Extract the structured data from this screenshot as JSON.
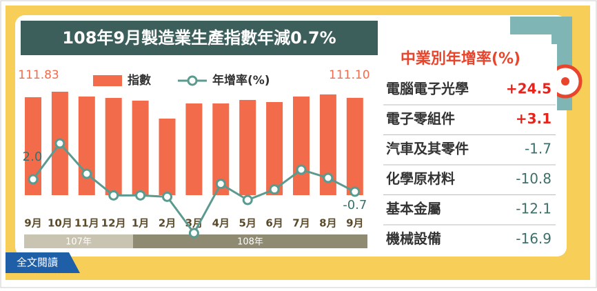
{
  "chart_data": {
    "type": "bar_line",
    "title": "108年9月製造業生產指數年減0.7%",
    "categories": [
      "9月",
      "10月",
      "11月",
      "12月",
      "1月",
      "2月",
      "3月",
      "4月",
      "5月",
      "6月",
      "7月",
      "8月",
      "9月"
    ],
    "year_groups": [
      "107年",
      "108年"
    ],
    "series": [
      {
        "name": "指數",
        "type": "bar",
        "color": "#f26b4b",
        "values": [
          111.83,
          118.1,
          112.6,
          111.0,
          107.9,
          87.4,
          104.7,
          104.7,
          108.7,
          106.3,
          112.6,
          115.0,
          111.1
        ],
        "value_labels": [
          "111.83",
          null,
          null,
          null,
          null,
          null,
          null,
          null,
          null,
          null,
          null,
          null,
          "111.10"
        ]
      },
      {
        "name": "年增率(%)",
        "type": "line",
        "color": "#5a9a8f",
        "values": [
          2.0,
          9.8,
          3.2,
          -1.5,
          -1.5,
          -1.8,
          -9.7,
          1.0,
          -2.5,
          -0.2,
          4.1,
          2.3,
          -0.7
        ],
        "value_labels": [
          "2.0",
          null,
          null,
          null,
          null,
          null,
          null,
          null,
          null,
          null,
          null,
          null,
          "-0.7"
        ]
      }
    ]
  },
  "industry_table": {
    "title": "中業別年增率(%)",
    "rows": [
      {
        "name": "電腦電子光學",
        "value": "+24.5"
      },
      {
        "name": "電子零組件",
        "value": "+3.1"
      },
      {
        "name": "汽車及其零件",
        "value": "-1.7"
      },
      {
        "name": "化學原材料",
        "value": "-10.8"
      },
      {
        "name": "基本金屬",
        "value": "-12.1"
      },
      {
        "name": "機械設備",
        "value": "-16.9"
      }
    ]
  },
  "read_more": "全文閱讀"
}
